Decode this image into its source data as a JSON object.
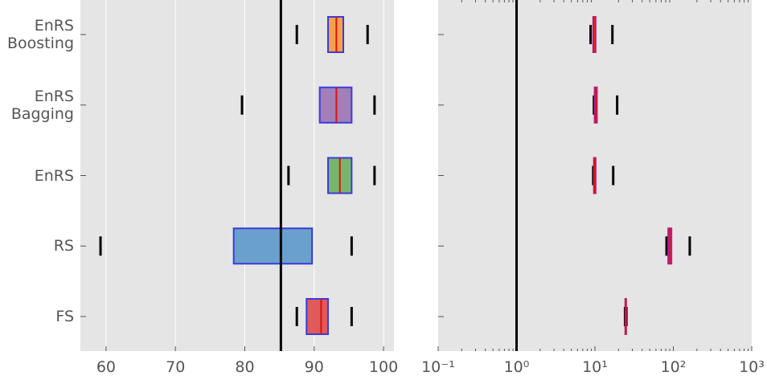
{
  "chart_data": [
    {
      "type": "box",
      "scale": "linear",
      "grid": true,
      "categories": [
        "FS",
        "RS",
        "EnRS",
        "EnRS Bagging",
        "EnRS Boosting"
      ],
      "colors": [
        "#e05a5a",
        "#6aa0cc",
        "#77b66a",
        "#a27fb8",
        "#f5a04a"
      ],
      "edge_color": "#3b3bdd",
      "median_color": "#dd1111",
      "boxes": [
        {
          "whislo": 87.5,
          "q1": 88.9,
          "med": 91.0,
          "q3": 92.0,
          "whishi": 95.4
        },
        {
          "whislo": 59.2,
          "q1": 78.4,
          "med": 85.2,
          "q3": 89.7,
          "whishi": 95.4
        },
        {
          "whislo": 86.3,
          "q1": 92.0,
          "med": 93.7,
          "q3": 95.4,
          "whishi": 98.7
        },
        {
          "whislo": 79.6,
          "q1": 90.8,
          "med": 93.2,
          "q3": 95.4,
          "whishi": 98.7
        },
        {
          "whislo": 87.5,
          "q1": 92.0,
          "med": 93.2,
          "q3": 94.2,
          "whishi": 97.7
        }
      ],
      "reference_line": 85.2,
      "xlim": [
        56.3,
        101.5
      ],
      "xticks": [
        60,
        70,
        80,
        90,
        100
      ]
    },
    {
      "type": "box",
      "scale": "log",
      "grid": false,
      "categories": [
        "FS",
        "RS",
        "EnRS",
        "EnRS Bagging",
        "EnRS Boosting"
      ],
      "colors": [
        "#e05a5a",
        "#6aa0cc",
        "#77b66a",
        "#a27fb8",
        "#f5a04a"
      ],
      "edge_color": "#b0208a",
      "median_color": "#dd1111",
      "boxes": [
        {
          "whislo": 24.2,
          "q1": 24.4,
          "med": 24.6,
          "q3": 25.0,
          "whishi": 25.2
        },
        {
          "whislo": 81.9,
          "q1": 86.0,
          "med": 90.2,
          "q3": 94.6,
          "whishi": 162
        },
        {
          "whislo": 9.5,
          "q1": 9.7,
          "med": 9.9,
          "q3": 10.2,
          "whishi": 17.1
        },
        {
          "whislo": 9.7,
          "q1": 9.9,
          "med": 10.3,
          "q3": 10.6,
          "whishi": 19.2
        },
        {
          "whislo": 8.8,
          "q1": 9.5,
          "med": 9.7,
          "q3": 10.2,
          "whishi": 16.7
        }
      ],
      "reference_line": 1,
      "xlim": [
        0.1,
        1000
      ],
      "xticks": [
        {
          "value": 0.1,
          "label": "10⁻¹"
        },
        {
          "value": 1,
          "label": "10⁰"
        },
        {
          "value": 10,
          "label": "10¹"
        },
        {
          "value": 100,
          "label": "10²"
        },
        {
          "value": 1000,
          "label": "10³"
        }
      ],
      "xminorticks": [
        0.2,
        0.3,
        0.4,
        0.5,
        0.6,
        0.7,
        0.8,
        0.9,
        2,
        3,
        4,
        5,
        6,
        7,
        8,
        9,
        20,
        30,
        40,
        50,
        60,
        70,
        80,
        90,
        200,
        300,
        400,
        500,
        600,
        700,
        800,
        900
      ]
    }
  ]
}
